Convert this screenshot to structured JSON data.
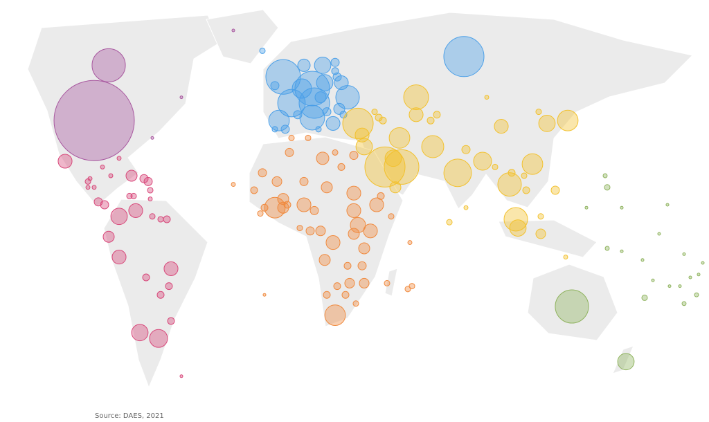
{
  "source": "Source: DAES, 2021",
  "chart_data": {
    "type": "bubble_map",
    "series": [
      {
        "color": "#a8579f",
        "lon": [
          -97,
          -90,
          -55,
          -30,
          -69
        ],
        "lat": [
          39,
          58,
          47,
          70,
          33
        ],
        "values": [
          50,
          8.6,
          0.06,
          0.06,
          0.06
        ]
      },
      {
        "color": "#d8487a",
        "lon": [
          -111,
          -85,
          -93,
          -79,
          -73,
          -71,
          -70,
          -80,
          -78,
          -100,
          -99,
          -97,
          -100,
          -89,
          -70,
          -95,
          -92,
          -77,
          -85,
          -69,
          -65,
          -62,
          -90,
          -85,
          -60,
          -72,
          -61,
          -65,
          -60,
          -75,
          -66,
          -55
        ],
        "lat": [
          25,
          26,
          23,
          20,
          19,
          18,
          15,
          13,
          13,
          18,
          19,
          16,
          16,
          20,
          12,
          11,
          10,
          8,
          6,
          6,
          5,
          5,
          -1,
          -8,
          -12,
          -15,
          -18,
          -21,
          -30,
          -34,
          -36,
          -49
        ],
        "values": [
          1.5,
          0.13,
          0.13,
          0.95,
          0.53,
          0.53,
          0.24,
          0.24,
          0.24,
          0.24,
          0.13,
          0.13,
          0.13,
          0.13,
          0.13,
          0.53,
          0.53,
          1.5,
          2.1,
          0.24,
          0.24,
          0.37,
          0.95,
          1.5,
          1.5,
          0.37,
          0.37,
          0.37,
          0.37,
          2.1,
          2.5,
          0.06
        ]
      },
      {
        "color": "#4a9fe8",
        "lon": [
          -6,
          8,
          9,
          -2,
          -8,
          8,
          25,
          14,
          3,
          13,
          22,
          4,
          -10,
          21,
          18,
          -5,
          -10,
          11,
          19,
          19,
          20,
          -16,
          15,
          1,
          12,
          23,
          81
        ],
        "lat": [
          54,
          50,
          45,
          45,
          39,
          40,
          47,
          52,
          50,
          58,
          52,
          58,
          51,
          43,
          38,
          36,
          36,
          36,
          59,
          56,
          54,
          63,
          42,
          41,
          47,
          41,
          61
        ],
        "values": [
          9.3,
          9.3,
          7.2,
          5.9,
          3.3,
          4.8,
          4.3,
          2.1,
          2.9,
          2.1,
          1.5,
          1.2,
          0.53,
          0.95,
          1.5,
          0.53,
          0.24,
          0.24,
          0.53,
          0.37,
          0.53,
          0.24,
          0.53,
          0.53,
          0.95,
          0.37,
          12.5
        ]
      },
      {
        "color": "#f2c12e",
        "lon": [
          30,
          58,
          58,
          43,
          51,
          47,
          33,
          32,
          38,
          40,
          42,
          50,
          66,
          78,
          90,
          82,
          99,
          114,
          121,
          131,
          103,
          106,
          107,
          118,
          118,
          125,
          111,
          104,
          110,
          96,
          68,
          65,
          92,
          117,
          82,
          74,
          130,
          48
        ],
        "lat": [
          38,
          47,
          41,
          23,
          23,
          26,
          30,
          34,
          42,
          40,
          39,
          33,
          30,
          21,
          25,
          29,
          37,
          24,
          38,
          39,
          17,
          5,
          2,
          0,
          6,
          15,
          15,
          21,
          20,
          23,
          41,
          39,
          47,
          42,
          9,
          4,
          -8,
          16
        ],
        "values": [
          7.2,
          4.8,
          1.5,
          12.5,
          9.3,
          2.1,
          2.1,
          1.5,
          0.24,
          0.37,
          0.37,
          3.3,
          3.8,
          5.9,
          2.5,
          0.53,
          1.5,
          3.3,
          2.1,
          3.3,
          4.3,
          4.3,
          2.1,
          0.73,
          0.24,
          0.53,
          0.37,
          0.37,
          0.24,
          0.24,
          0.37,
          0.37,
          0.13,
          0.24,
          0.13,
          0.24,
          0.13,
          0.95
        ]
      },
      {
        "color": "#f08a3e",
        "lon": [
          19,
          -10,
          4,
          -6,
          -6,
          -15,
          -17,
          -20,
          -16,
          -9,
          -3,
          4,
          13,
          28,
          15,
          28,
          28,
          9,
          12,
          7,
          18,
          30,
          36,
          39,
          41,
          46,
          28,
          33,
          14,
          25,
          32,
          26,
          33,
          20,
          15,
          24,
          29,
          44,
          54,
          56,
          55,
          -15,
          -30,
          6,
          -2,
          19,
          22,
          -4,
          2
        ],
        "lat": [
          -28,
          9,
          10,
          9,
          12,
          9,
          7,
          15,
          21,
          18,
          28,
          18,
          26,
          27,
          16,
          14,
          8,
          8,
          1,
          1,
          -3,
          3,
          1,
          10,
          13,
          6,
          0,
          -5,
          -9,
          -11,
          -11,
          -17,
          -17,
          -18,
          -21,
          -21,
          -24,
          -17,
          -19,
          -18,
          -3,
          -21,
          17,
          33,
          33,
          28,
          23,
          10,
          2
        ],
        "values": [
          3.3,
          3.3,
          1.5,
          0.95,
          0.95,
          0.37,
          0.24,
          0.37,
          0.53,
          0.73,
          0.53,
          0.53,
          1.2,
          0.53,
          0.95,
          1.5,
          1.5,
          0.53,
          0.73,
          0.53,
          1.5,
          1.8,
          1.5,
          1.5,
          0.37,
          0.24,
          0.95,
          0.95,
          0.95,
          0.37,
          0.53,
          0.73,
          0.73,
          0.37,
          0.37,
          0.37,
          0.24,
          0.24,
          0.24,
          0.24,
          0.13,
          0.06,
          0.13,
          0.24,
          0.24,
          0.24,
          0.37,
          0.37,
          0.24
        ]
      },
      {
        "color": "#8fb35e",
        "lon": [
          133,
          159,
          149,
          150,
          140,
          157,
          179,
          175,
          150,
          168,
          187,
          193,
          180,
          185,
          190,
          194,
          196,
          167,
          172,
          187,
          157
        ],
        "lat": [
          -25,
          -44,
          20,
          16,
          9,
          9,
          10,
          0,
          -5,
          -22,
          -24,
          -21,
          -18,
          -18,
          -15,
          -14,
          -10,
          -9,
          -16,
          -7,
          -6
        ],
        "values": [
          8.6,
          2.1,
          0.13,
          0.24,
          0.06,
          0.06,
          0.06,
          0.06,
          0.13,
          0.24,
          0.13,
          0.13,
          0.06,
          0.06,
          0.06,
          0.06,
          0.06,
          0.06,
          0.06,
          0.06,
          0.06
        ]
      }
    ]
  }
}
